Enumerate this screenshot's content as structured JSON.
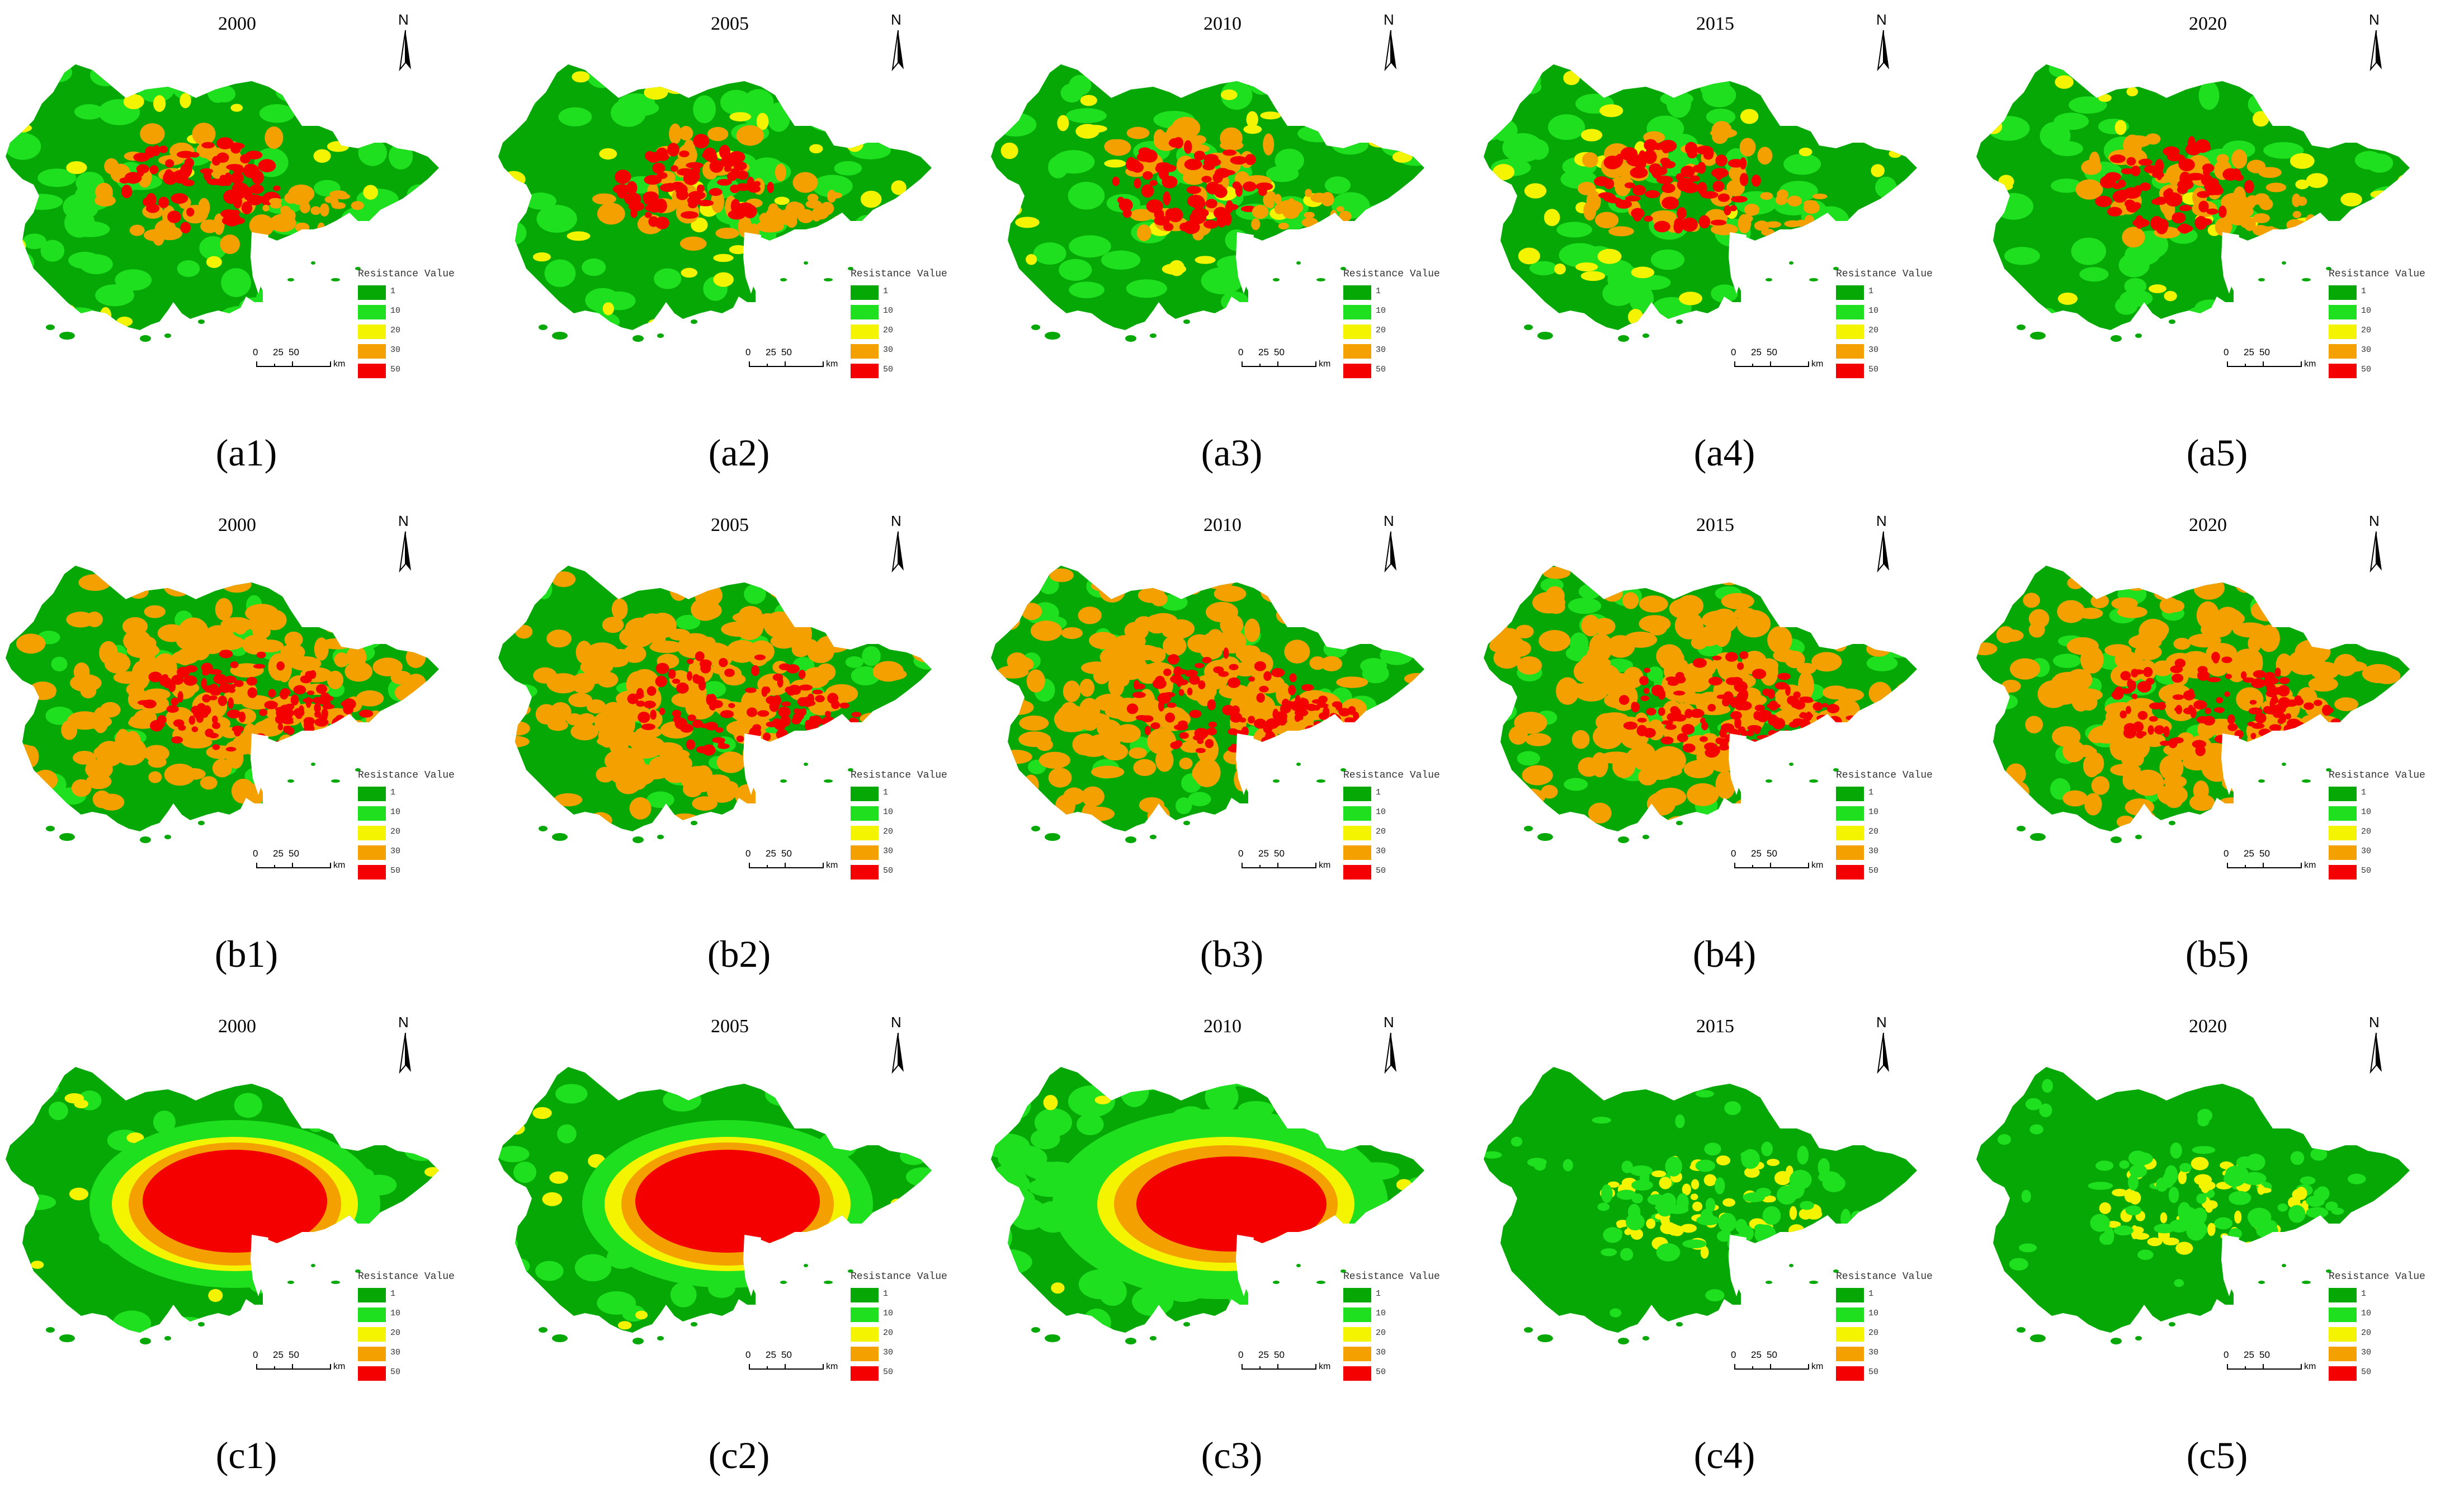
{
  "colors": {
    "v1": "#05a805",
    "v10": "#1ee01e",
    "v20": "#f4f400",
    "v30": "#f4a000",
    "v50": "#f40000"
  },
  "legend": {
    "title": "Resistance Value",
    "values": [
      "1",
      "10",
      "20",
      "30",
      "50"
    ]
  },
  "scale_bar": {
    "ticks": [
      "0",
      "25",
      "50"
    ],
    "unit": "km"
  },
  "north_label": "N",
  "panels": [
    {
      "label": "(a1)",
      "year": "2000",
      "set": "a"
    },
    {
      "label": "(a2)",
      "year": "2005",
      "set": "a"
    },
    {
      "label": "(a3)",
      "year": "2010",
      "set": "a"
    },
    {
      "label": "(a4)",
      "year": "2015",
      "set": "a"
    },
    {
      "label": "(a5)",
      "year": "2020",
      "set": "a"
    },
    {
      "label": "(b1)",
      "year": "2000",
      "set": "b"
    },
    {
      "label": "(b2)",
      "year": "2005",
      "set": "b"
    },
    {
      "label": "(b3)",
      "year": "2010",
      "set": "b"
    },
    {
      "label": "(b4)",
      "year": "2015",
      "set": "b"
    },
    {
      "label": "(b5)",
      "year": "2020",
      "set": "b"
    },
    {
      "label": "(c1)",
      "year": "2000",
      "set": "c1"
    },
    {
      "label": "(c2)",
      "year": "2005",
      "set": "c1"
    },
    {
      "label": "(c3)",
      "year": "2010",
      "set": "c3"
    },
    {
      "label": "(c4)",
      "year": "2015",
      "set": "c4"
    },
    {
      "label": "(c5)",
      "year": "2020",
      "set": "c4"
    }
  ]
}
